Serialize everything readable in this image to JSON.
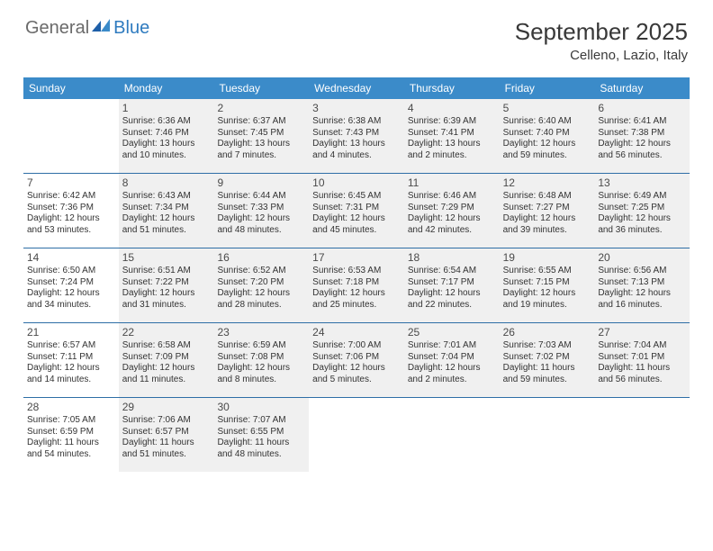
{
  "logo": {
    "text1": "General",
    "text2": "Blue"
  },
  "title": "September 2025",
  "location": "Celleno, Lazio, Italy",
  "theme": {
    "header_bg": "#3b8bc9",
    "header_fg": "#ffffff",
    "divider": "#2e6ea6",
    "dim_bg": "#f0f0f0",
    "text": "#333333",
    "daynum": "#4a4a4a",
    "title_color": "#383838",
    "font_title": 26,
    "font_location": 15,
    "font_header": 12,
    "font_daynum": 12,
    "font_detail": 10
  },
  "day_names": [
    "Sunday",
    "Monday",
    "Tuesday",
    "Wednesday",
    "Thursday",
    "Friday",
    "Saturday"
  ],
  "weeks": [
    [
      {
        "num": "",
        "sunrise": "",
        "sunset": "",
        "daylight": "",
        "dim": false
      },
      {
        "num": "1",
        "sunrise": "Sunrise: 6:36 AM",
        "sunset": "Sunset: 7:46 PM",
        "daylight": "Daylight: 13 hours and 10 minutes.",
        "dim": true
      },
      {
        "num": "2",
        "sunrise": "Sunrise: 6:37 AM",
        "sunset": "Sunset: 7:45 PM",
        "daylight": "Daylight: 13 hours and 7 minutes.",
        "dim": true
      },
      {
        "num": "3",
        "sunrise": "Sunrise: 6:38 AM",
        "sunset": "Sunset: 7:43 PM",
        "daylight": "Daylight: 13 hours and 4 minutes.",
        "dim": true
      },
      {
        "num": "4",
        "sunrise": "Sunrise: 6:39 AM",
        "sunset": "Sunset: 7:41 PM",
        "daylight": "Daylight: 13 hours and 2 minutes.",
        "dim": true
      },
      {
        "num": "5",
        "sunrise": "Sunrise: 6:40 AM",
        "sunset": "Sunset: 7:40 PM",
        "daylight": "Daylight: 12 hours and 59 minutes.",
        "dim": true
      },
      {
        "num": "6",
        "sunrise": "Sunrise: 6:41 AM",
        "sunset": "Sunset: 7:38 PM",
        "daylight": "Daylight: 12 hours and 56 minutes.",
        "dim": true
      }
    ],
    [
      {
        "num": "7",
        "sunrise": "Sunrise: 6:42 AM",
        "sunset": "Sunset: 7:36 PM",
        "daylight": "Daylight: 12 hours and 53 minutes.",
        "dim": false
      },
      {
        "num": "8",
        "sunrise": "Sunrise: 6:43 AM",
        "sunset": "Sunset: 7:34 PM",
        "daylight": "Daylight: 12 hours and 51 minutes.",
        "dim": true
      },
      {
        "num": "9",
        "sunrise": "Sunrise: 6:44 AM",
        "sunset": "Sunset: 7:33 PM",
        "daylight": "Daylight: 12 hours and 48 minutes.",
        "dim": true
      },
      {
        "num": "10",
        "sunrise": "Sunrise: 6:45 AM",
        "sunset": "Sunset: 7:31 PM",
        "daylight": "Daylight: 12 hours and 45 minutes.",
        "dim": true
      },
      {
        "num": "11",
        "sunrise": "Sunrise: 6:46 AM",
        "sunset": "Sunset: 7:29 PM",
        "daylight": "Daylight: 12 hours and 42 minutes.",
        "dim": true
      },
      {
        "num": "12",
        "sunrise": "Sunrise: 6:48 AM",
        "sunset": "Sunset: 7:27 PM",
        "daylight": "Daylight: 12 hours and 39 minutes.",
        "dim": true
      },
      {
        "num": "13",
        "sunrise": "Sunrise: 6:49 AM",
        "sunset": "Sunset: 7:25 PM",
        "daylight": "Daylight: 12 hours and 36 minutes.",
        "dim": true
      }
    ],
    [
      {
        "num": "14",
        "sunrise": "Sunrise: 6:50 AM",
        "sunset": "Sunset: 7:24 PM",
        "daylight": "Daylight: 12 hours and 34 minutes.",
        "dim": false
      },
      {
        "num": "15",
        "sunrise": "Sunrise: 6:51 AM",
        "sunset": "Sunset: 7:22 PM",
        "daylight": "Daylight: 12 hours and 31 minutes.",
        "dim": true
      },
      {
        "num": "16",
        "sunrise": "Sunrise: 6:52 AM",
        "sunset": "Sunset: 7:20 PM",
        "daylight": "Daylight: 12 hours and 28 minutes.",
        "dim": true
      },
      {
        "num": "17",
        "sunrise": "Sunrise: 6:53 AM",
        "sunset": "Sunset: 7:18 PM",
        "daylight": "Daylight: 12 hours and 25 minutes.",
        "dim": true
      },
      {
        "num": "18",
        "sunrise": "Sunrise: 6:54 AM",
        "sunset": "Sunset: 7:17 PM",
        "daylight": "Daylight: 12 hours and 22 minutes.",
        "dim": true
      },
      {
        "num": "19",
        "sunrise": "Sunrise: 6:55 AM",
        "sunset": "Sunset: 7:15 PM",
        "daylight": "Daylight: 12 hours and 19 minutes.",
        "dim": true
      },
      {
        "num": "20",
        "sunrise": "Sunrise: 6:56 AM",
        "sunset": "Sunset: 7:13 PM",
        "daylight": "Daylight: 12 hours and 16 minutes.",
        "dim": true
      }
    ],
    [
      {
        "num": "21",
        "sunrise": "Sunrise: 6:57 AM",
        "sunset": "Sunset: 7:11 PM",
        "daylight": "Daylight: 12 hours and 14 minutes.",
        "dim": false
      },
      {
        "num": "22",
        "sunrise": "Sunrise: 6:58 AM",
        "sunset": "Sunset: 7:09 PM",
        "daylight": "Daylight: 12 hours and 11 minutes.",
        "dim": true
      },
      {
        "num": "23",
        "sunrise": "Sunrise: 6:59 AM",
        "sunset": "Sunset: 7:08 PM",
        "daylight": "Daylight: 12 hours and 8 minutes.",
        "dim": true
      },
      {
        "num": "24",
        "sunrise": "Sunrise: 7:00 AM",
        "sunset": "Sunset: 7:06 PM",
        "daylight": "Daylight: 12 hours and 5 minutes.",
        "dim": true
      },
      {
        "num": "25",
        "sunrise": "Sunrise: 7:01 AM",
        "sunset": "Sunset: 7:04 PM",
        "daylight": "Daylight: 12 hours and 2 minutes.",
        "dim": true
      },
      {
        "num": "26",
        "sunrise": "Sunrise: 7:03 AM",
        "sunset": "Sunset: 7:02 PM",
        "daylight": "Daylight: 11 hours and 59 minutes.",
        "dim": true
      },
      {
        "num": "27",
        "sunrise": "Sunrise: 7:04 AM",
        "sunset": "Sunset: 7:01 PM",
        "daylight": "Daylight: 11 hours and 56 minutes.",
        "dim": true
      }
    ],
    [
      {
        "num": "28",
        "sunrise": "Sunrise: 7:05 AM",
        "sunset": "Sunset: 6:59 PM",
        "daylight": "Daylight: 11 hours and 54 minutes.",
        "dim": false
      },
      {
        "num": "29",
        "sunrise": "Sunrise: 7:06 AM",
        "sunset": "Sunset: 6:57 PM",
        "daylight": "Daylight: 11 hours and 51 minutes.",
        "dim": true
      },
      {
        "num": "30",
        "sunrise": "Sunrise: 7:07 AM",
        "sunset": "Sunset: 6:55 PM",
        "daylight": "Daylight: 11 hours and 48 minutes.",
        "dim": true
      },
      {
        "num": "",
        "sunrise": "",
        "sunset": "",
        "daylight": "",
        "dim": false
      },
      {
        "num": "",
        "sunrise": "",
        "sunset": "",
        "daylight": "",
        "dim": false
      },
      {
        "num": "",
        "sunrise": "",
        "sunset": "",
        "daylight": "",
        "dim": false
      },
      {
        "num": "",
        "sunrise": "",
        "sunset": "",
        "daylight": "",
        "dim": false
      }
    ]
  ]
}
